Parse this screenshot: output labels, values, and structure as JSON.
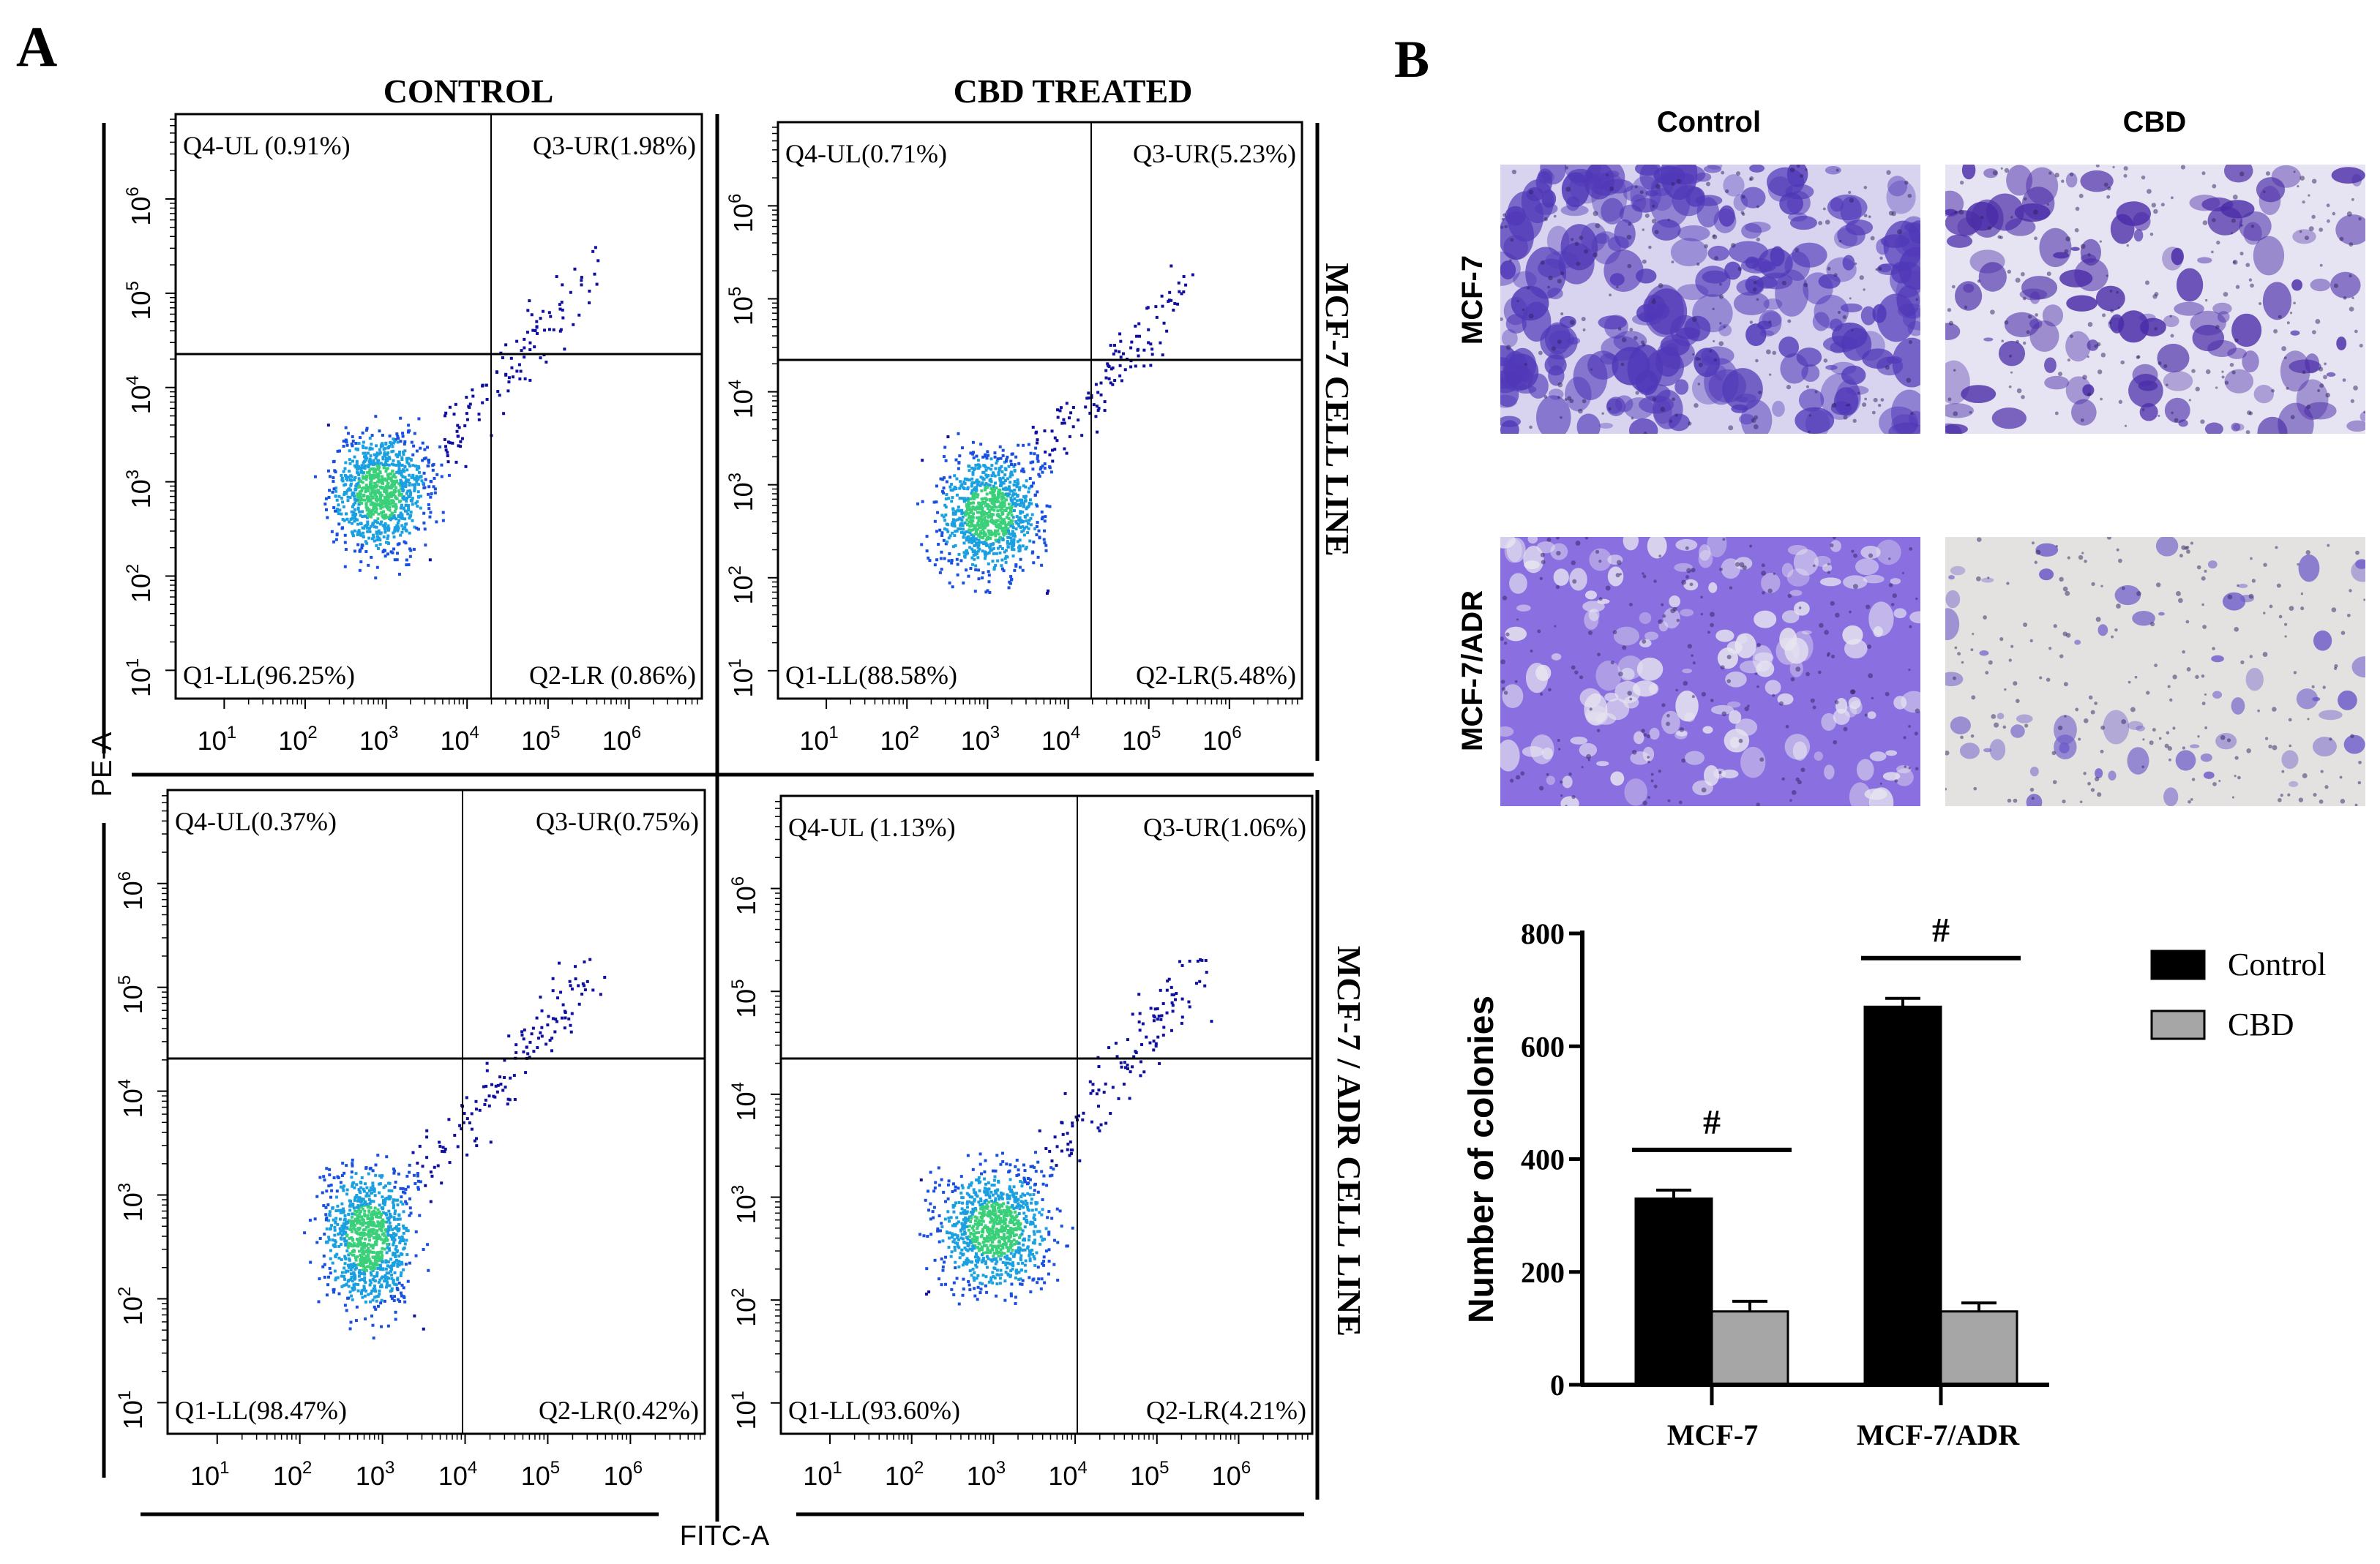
{
  "panel_a": {
    "letter": "A",
    "col_headers": [
      "CONTROL",
      "CBD TREATED"
    ],
    "row_labels": [
      "MCF-7 CELL LINE",
      "MCF-7 / ADR CELL LINE"
    ],
    "y_axis_label": "PE-A",
    "x_axis_label": "FITC-A",
    "tick_labels": [
      "10",
      "10",
      "10",
      "10",
      "10",
      "10"
    ],
    "tick_exponents": [
      "1",
      "2",
      "3",
      "4",
      "5",
      "6"
    ],
    "plots": [
      {
        "name": "mcf7-control",
        "UL": "Q4-UL (0.91%)",
        "UR": "Q3-UR(1.98%)",
        "LL": "Q1-LL(96.25%)",
        "LR": "Q2-LR (0.86%)"
      },
      {
        "name": "mcf7-cbd",
        "UL": "Q4-UL(0.71%)",
        "UR": "Q3-UR(5.23%)",
        "LL": "Q1-LL(88.58%)",
        "LR": "Q2-LR(5.48%)"
      },
      {
        "name": "adr-control",
        "UL": "Q4-UL(0.37%)",
        "UR": "Q3-UR(0.75%)",
        "LL": "Q1-LL(98.47%)",
        "LR": "Q2-LR(0.42%)"
      },
      {
        "name": "adr-cbd",
        "UL": "Q4-UL (1.13%)",
        "UR": "Q3-UR(1.06%)",
        "LL": "Q1-LL(93.60%)",
        "LR": "Q2-LR(4.21%)"
      }
    ]
  },
  "panel_b": {
    "letter": "B",
    "col_headers": [
      "Control",
      "CBD"
    ],
    "row_labels": [
      "MCF-7",
      "MCF-7/ADR"
    ]
  },
  "colors": {
    "control": "#000000",
    "cbd": "#a6a6a6",
    "stain": "#5a3fc0"
  },
  "chart_data": {
    "type": "bar",
    "title": "",
    "xlabel": "",
    "ylabel": "Number of colonies",
    "ylim": [
      0,
      800
    ],
    "yticks": [
      "0",
      "200",
      "400",
      "600",
      "800"
    ],
    "categories": [
      "MCF-7",
      "MCF-7/ADR"
    ],
    "series": [
      {
        "name": "Control",
        "values": [
          330,
          670
        ],
        "errors": [
          15,
          15
        ]
      },
      {
        "name": "CBD",
        "values": [
          130,
          130
        ],
        "errors": [
          18,
          15
        ]
      }
    ],
    "significance": [
      "#",
      "#"
    ],
    "legend": "top-right"
  }
}
